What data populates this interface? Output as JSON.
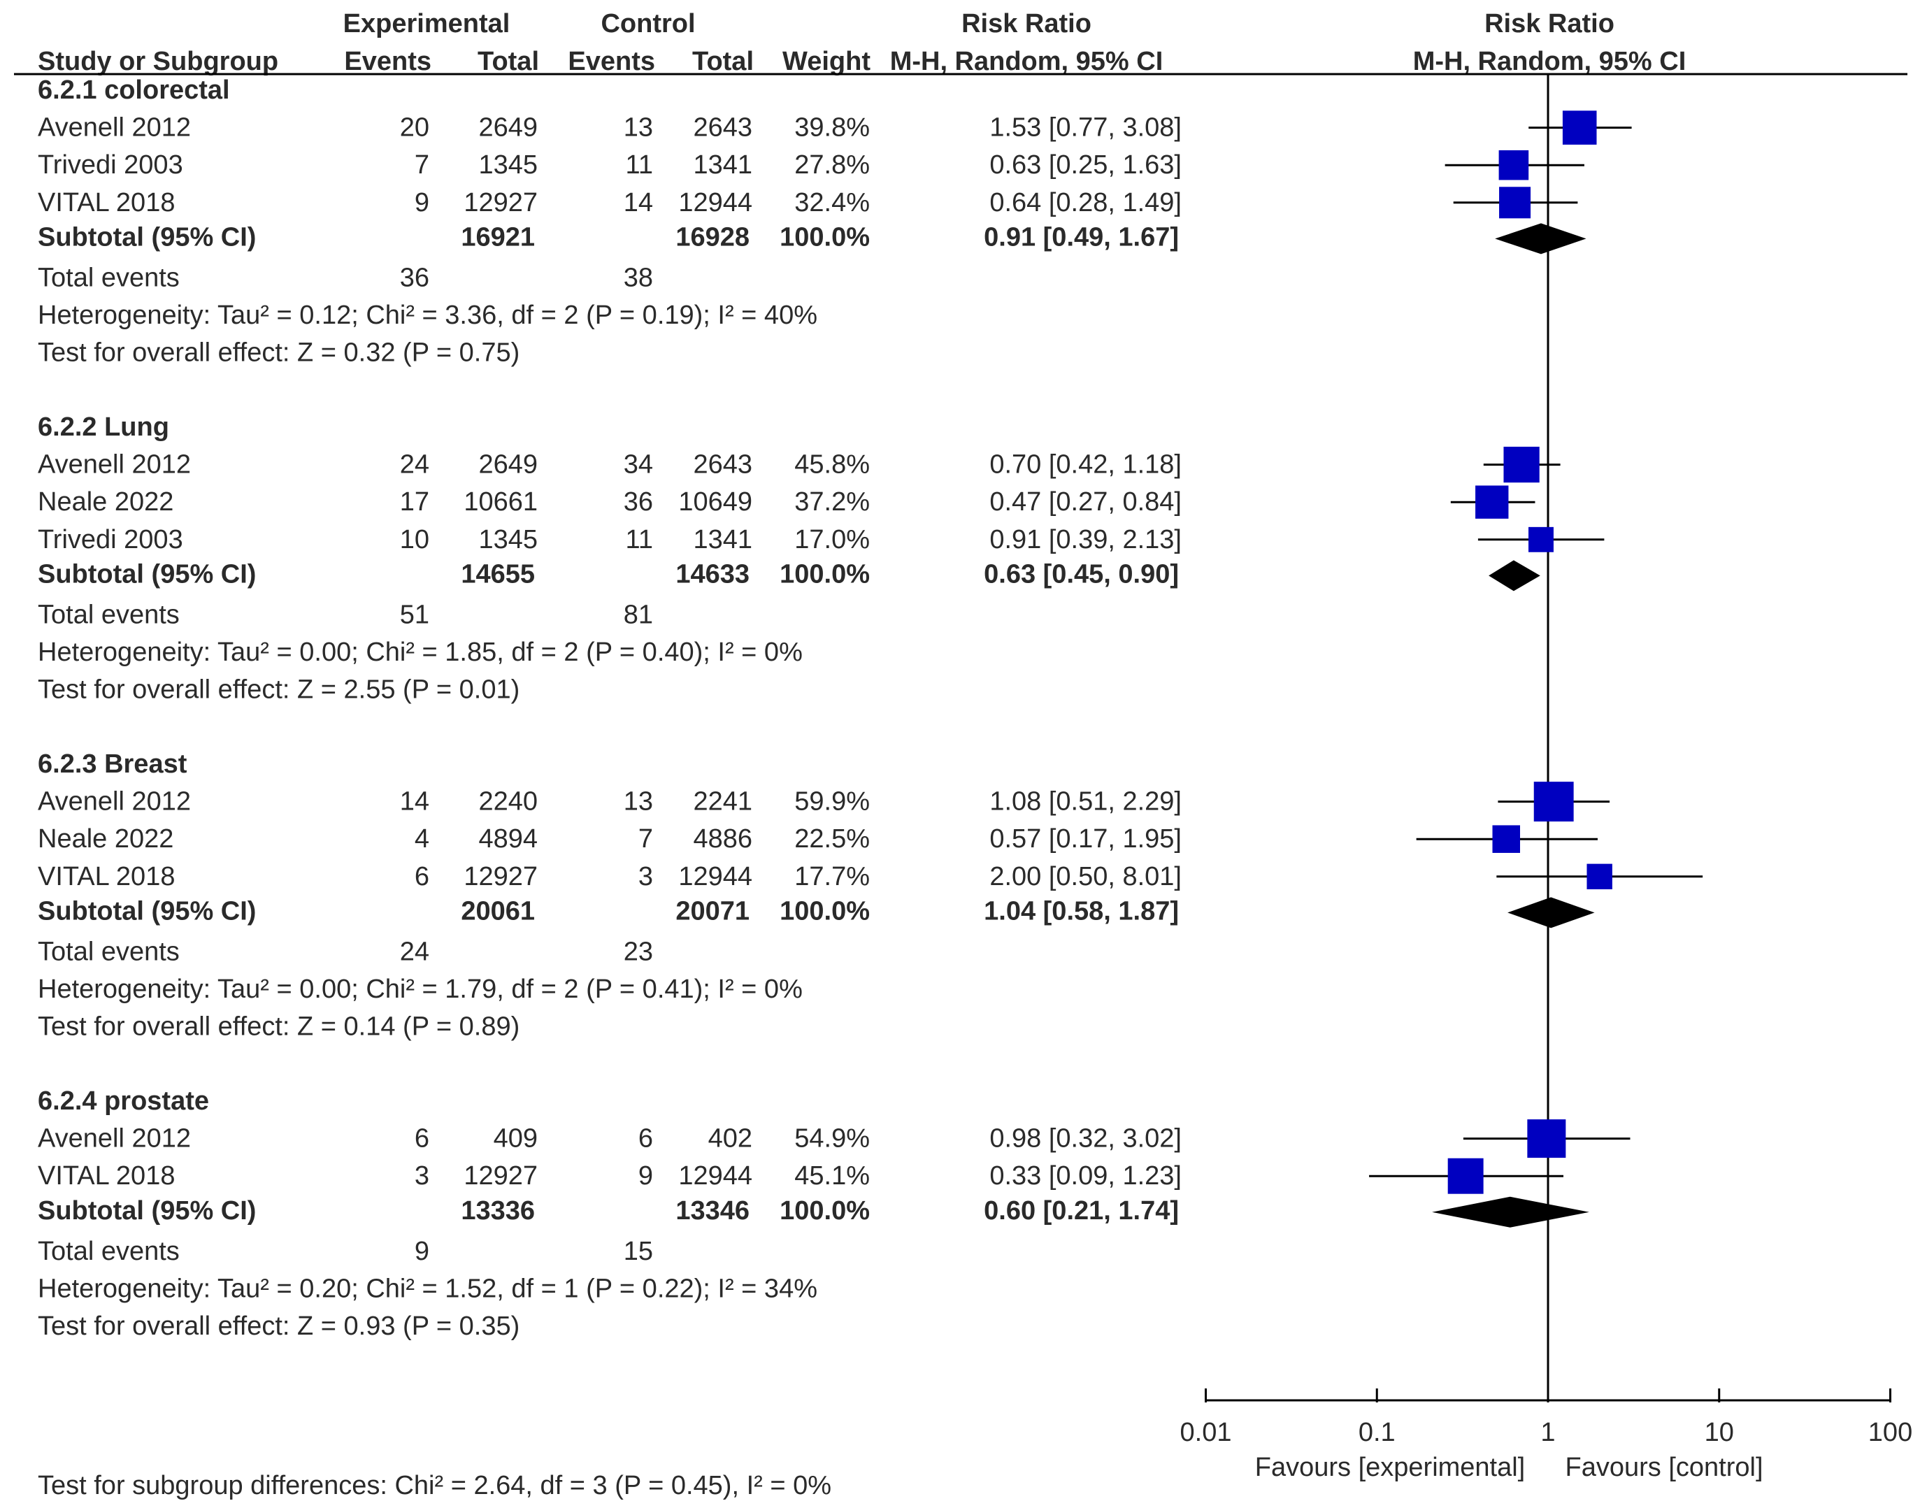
{
  "colors": {
    "square": "#0000c0",
    "diamond": "#000000",
    "line": "#000000",
    "text": "#2a2a2a"
  },
  "chart_data": {
    "type": "forest",
    "header": {
      "study": "Study or Subgroup",
      "experimental": "Experimental",
      "control": "Control",
      "events": "Events",
      "total": "Total",
      "weight": "Weight",
      "rr_title": "Risk Ratio",
      "rr_method": "M-H, Random, 95% CI",
      "plot_title": "Risk Ratio",
      "plot_method": "M-H, Random, 95% CI"
    },
    "x_axis": {
      "scale": "log",
      "ticks": [
        0.01,
        0.1,
        1,
        10,
        100
      ],
      "tick_labels": [
        "0.01",
        "0.1",
        "1",
        "10",
        "100"
      ],
      "favours_left": "Favours [experimental]",
      "favours_right": "Favours [control]"
    },
    "subgroups": [
      {
        "title": "6.2.1 colorectal",
        "studies": [
          {
            "name": "Avenell 2012",
            "e_events": "20",
            "e_total": "2649",
            "c_events": "13",
            "c_total": "2643",
            "weight": "39.8%",
            "ci_text": "1.53 [0.77, 3.08]",
            "rr": 1.53,
            "lo": 0.77,
            "hi": 3.08,
            "w": 39.8
          },
          {
            "name": "Trivedi 2003",
            "e_events": "7",
            "e_total": "1345",
            "c_events": "11",
            "c_total": "1341",
            "weight": "27.8%",
            "ci_text": "0.63 [0.25, 1.63]",
            "rr": 0.63,
            "lo": 0.25,
            "hi": 1.63,
            "w": 27.8
          },
          {
            "name": "VITAL 2018",
            "e_events": "9",
            "e_total": "12927",
            "c_events": "14",
            "c_total": "12944",
            "weight": "32.4%",
            "ci_text": "0.64 [0.28, 1.49]",
            "rr": 0.64,
            "lo": 0.28,
            "hi": 1.49,
            "w": 32.4
          }
        ],
        "subtotal": {
          "label": "Subtotal (95% CI)",
          "e_total": "16921",
          "c_total": "16928",
          "weight": "100.0%",
          "ci_text": "0.91 [0.49, 1.67]",
          "rr": 0.91,
          "lo": 0.49,
          "hi": 1.67
        },
        "total_events": {
          "label": "Total events",
          "e": "36",
          "c": "38"
        },
        "heterogeneity": "Heterogeneity: Tau² = 0.12; Chi² = 3.36, df = 2 (P = 0.19); I² = 40%",
        "overall": "Test for overall effect: Z = 0.32 (P = 0.75)"
      },
      {
        "title": "6.2.2 Lung",
        "studies": [
          {
            "name": "Avenell 2012",
            "e_events": "24",
            "e_total": "2649",
            "c_events": "34",
            "c_total": "2643",
            "weight": "45.8%",
            "ci_text": "0.70 [0.42, 1.18]",
            "rr": 0.7,
            "lo": 0.42,
            "hi": 1.18,
            "w": 45.8
          },
          {
            "name": "Neale 2022",
            "e_events": "17",
            "e_total": "10661",
            "c_events": "36",
            "c_total": "10649",
            "weight": "37.2%",
            "ci_text": "0.47 [0.27, 0.84]",
            "rr": 0.47,
            "lo": 0.27,
            "hi": 0.84,
            "w": 37.2
          },
          {
            "name": "Trivedi 2003",
            "e_events": "10",
            "e_total": "1345",
            "c_events": "11",
            "c_total": "1341",
            "weight": "17.0%",
            "ci_text": "0.91 [0.39, 2.13]",
            "rr": 0.91,
            "lo": 0.39,
            "hi": 2.13,
            "w": 17.0
          }
        ],
        "subtotal": {
          "label": "Subtotal (95% CI)",
          "e_total": "14655",
          "c_total": "14633",
          "weight": "100.0%",
          "ci_text": "0.63 [0.45, 0.90]",
          "rr": 0.63,
          "lo": 0.45,
          "hi": 0.9
        },
        "total_events": {
          "label": "Total events",
          "e": "51",
          "c": "81"
        },
        "heterogeneity": "Heterogeneity: Tau² = 0.00; Chi² = 1.85, df = 2 (P = 0.40); I² = 0%",
        "overall": "Test for overall effect: Z = 2.55 (P = 0.01)"
      },
      {
        "title": "6.2.3 Breast",
        "studies": [
          {
            "name": "Avenell 2012",
            "e_events": "14",
            "e_total": "2240",
            "c_events": "13",
            "c_total": "2241",
            "weight": "59.9%",
            "ci_text": "1.08 [0.51, 2.29]",
            "rr": 1.08,
            "lo": 0.51,
            "hi": 2.29,
            "w": 59.9
          },
          {
            "name": "Neale 2022",
            "e_events": "4",
            "e_total": "4894",
            "c_events": "7",
            "c_total": "4886",
            "weight": "22.5%",
            "ci_text": "0.57 [0.17, 1.95]",
            "rr": 0.57,
            "lo": 0.17,
            "hi": 1.95,
            "w": 22.5
          },
          {
            "name": "VITAL 2018",
            "e_events": "6",
            "e_total": "12927",
            "c_events": "3",
            "c_total": "12944",
            "weight": "17.7%",
            "ci_text": "2.00 [0.50, 8.01]",
            "rr": 2.0,
            "lo": 0.5,
            "hi": 8.01,
            "w": 17.7
          }
        ],
        "subtotal": {
          "label": "Subtotal (95% CI)",
          "e_total": "20061",
          "c_total": "20071",
          "weight": "100.0%",
          "ci_text": "1.04 [0.58, 1.87]",
          "rr": 1.04,
          "lo": 0.58,
          "hi": 1.87
        },
        "total_events": {
          "label": "Total events",
          "e": "24",
          "c": "23"
        },
        "heterogeneity": "Heterogeneity: Tau² = 0.00; Chi² = 1.79, df = 2 (P = 0.41); I² = 0%",
        "overall": "Test for overall effect: Z = 0.14 (P = 0.89)"
      },
      {
        "title": "6.2.4 prostate",
        "studies": [
          {
            "name": "Avenell 2012",
            "e_events": "6",
            "e_total": "409",
            "c_events": "6",
            "c_total": "402",
            "weight": "54.9%",
            "ci_text": "0.98 [0.32, 3.02]",
            "rr": 0.98,
            "lo": 0.32,
            "hi": 3.02,
            "w": 54.9
          },
          {
            "name": "VITAL 2018",
            "e_events": "3",
            "e_total": "12927",
            "c_events": "9",
            "c_total": "12944",
            "weight": "45.1%",
            "ci_text": "0.33 [0.09, 1.23]",
            "rr": 0.33,
            "lo": 0.09,
            "hi": 1.23,
            "w": 45.1
          }
        ],
        "subtotal": {
          "label": "Subtotal (95% CI)",
          "e_total": "13336",
          "c_total": "13346",
          "weight": "100.0%",
          "ci_text": "0.60 [0.21, 1.74]",
          "rr": 0.6,
          "lo": 0.21,
          "hi": 1.74
        },
        "total_events": {
          "label": "Total events",
          "e": "9",
          "c": "15"
        },
        "heterogeneity": "Heterogeneity: Tau² = 0.20; Chi² = 1.52, df = 1 (P = 0.22); I² = 34%",
        "overall": "Test for overall effect: Z = 0.93 (P = 0.35)"
      }
    ],
    "subgroup_differences": "Test for subgroup differences: Chi² = 2.64, df = 3 (P = 0.45), I² = 0%"
  }
}
